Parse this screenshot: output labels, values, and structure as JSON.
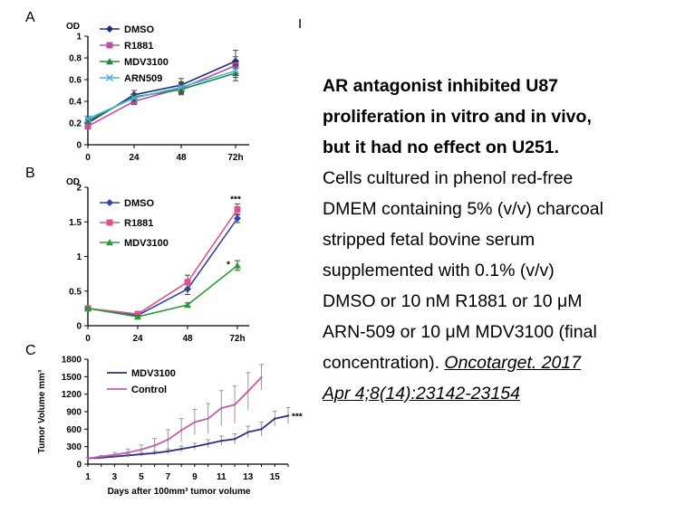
{
  "stray_mark": "I",
  "chart_data": [
    {
      "panel": "A",
      "type": "line",
      "ylabel": "OD",
      "categories": [
        "0",
        "24",
        "48",
        "72h"
      ],
      "ylim": [
        0,
        1
      ],
      "yticks": [
        "0",
        "0.2",
        "0.4",
        "0.6",
        "0.8",
        "1"
      ],
      "legend_position": "top-left",
      "series": [
        {
          "name": "DMSO",
          "values": [
            0.2,
            0.46,
            0.55,
            0.77
          ],
          "err": [
            0.03,
            0.04,
            0.06,
            0.1
          ],
          "color": "#1f2a7a",
          "marker": "diamond"
        },
        {
          "name": "R1881",
          "values": [
            0.17,
            0.4,
            0.52,
            0.73
          ],
          "err": [
            0.02,
            0.03,
            0.05,
            0.08
          ],
          "color": "#c0509a",
          "marker": "square"
        },
        {
          "name": "MDV3100",
          "values": [
            0.22,
            0.44,
            0.51,
            0.66
          ],
          "err": [
            0.02,
            0.03,
            0.05,
            0.07
          ],
          "color": "#1e8a3a",
          "marker": "triangle"
        },
        {
          "name": "ARN509",
          "values": [
            0.24,
            0.43,
            0.53,
            0.68
          ],
          "err": [
            0.02,
            0.03,
            0.05,
            0.06
          ],
          "color": "#4ab4e0",
          "marker": "x"
        }
      ]
    },
    {
      "panel": "B",
      "type": "line",
      "ylabel": "OD",
      "categories": [
        "0",
        "24",
        "48",
        "72h"
      ],
      "ylim": [
        0,
        2
      ],
      "yticks": [
        "0",
        "0.5",
        "1",
        "1.5",
        "2"
      ],
      "legend_position": "top-left",
      "annotations": [
        "***",
        "*"
      ],
      "series": [
        {
          "name": "DMSO",
          "values": [
            0.25,
            0.15,
            0.53,
            1.55
          ],
          "err": [
            0.01,
            0.02,
            0.08,
            0.06
          ],
          "color": "#3344aa",
          "marker": "diamond"
        },
        {
          "name": "R1881",
          "values": [
            0.25,
            0.17,
            0.63,
            1.68
          ],
          "err": [
            0.01,
            0.02,
            0.1,
            0.08
          ],
          "color": "#e0508a",
          "marker": "square"
        },
        {
          "name": "MDV3100",
          "values": [
            0.25,
            0.13,
            0.3,
            0.87
          ],
          "err": [
            0.01,
            0.02,
            0.03,
            0.07
          ],
          "color": "#2a9a3a",
          "marker": "triangle"
        }
      ]
    },
    {
      "panel": "C",
      "type": "line",
      "xlabel": "Days after 100mm³ tumor volume",
      "ylabel": "Tumor Volume mm³",
      "ylim": [
        0,
        1800
      ],
      "xlim": [
        1,
        16
      ],
      "yticks": [
        "0",
        "300",
        "600",
        "900",
        "1200",
        "1500",
        "1800"
      ],
      "xticks": [
        "1",
        "3",
        "5",
        "7",
        "9",
        "11",
        "13",
        "15"
      ],
      "legend_position": "top-left",
      "annotations": [
        "***"
      ],
      "series": [
        {
          "name": "MDV3100",
          "color": "#2b2f86",
          "x": [
            1,
            2,
            3,
            4,
            5,
            6,
            7,
            8,
            9,
            10,
            11,
            12,
            13,
            14,
            15,
            16
          ],
          "values": [
            100,
            110,
            130,
            150,
            170,
            190,
            220,
            260,
            300,
            350,
            400,
            430,
            550,
            600,
            780,
            830
          ],
          "err": [
            10,
            15,
            20,
            30,
            30,
            30,
            40,
            50,
            60,
            70,
            80,
            90,
            100,
            120,
            130,
            140
          ]
        },
        {
          "name": "Control",
          "color": "#c85aa8",
          "x": [
            1,
            2,
            3,
            4,
            5,
            6,
            7,
            8,
            9,
            10,
            11,
            12,
            13,
            14
          ],
          "values": [
            100,
            130,
            160,
            200,
            250,
            320,
            420,
            580,
            720,
            780,
            960,
            1020,
            1250,
            1490
          ],
          "err": [
            10,
            20,
            40,
            60,
            80,
            120,
            170,
            200,
            220,
            260,
            300,
            320,
            320,
            220
          ]
        }
      ]
    }
  ],
  "caption": {
    "bold_lines": [
      "AR antagonist inhibited U87",
      "proliferation in vitro and in vivo,",
      "but it had no effect on U251."
    ],
    "body_lines": [
      "Cells cultured in phenol red-free",
      "DMEM containing 5% (v/v) charcoal",
      "stripped fetal bovine serum",
      "supplemented with 0.1% (v/v)",
      "DMSO or 10 nM R1881 or 10 μM",
      "ARN-509 or 10 μM MDV3100 (final"
    ],
    "last_line_plain": "concentration). ",
    "citation_part1": "Oncotarget. 2017",
    "citation_part2": "Apr 4;8(14):23142-23154"
  }
}
